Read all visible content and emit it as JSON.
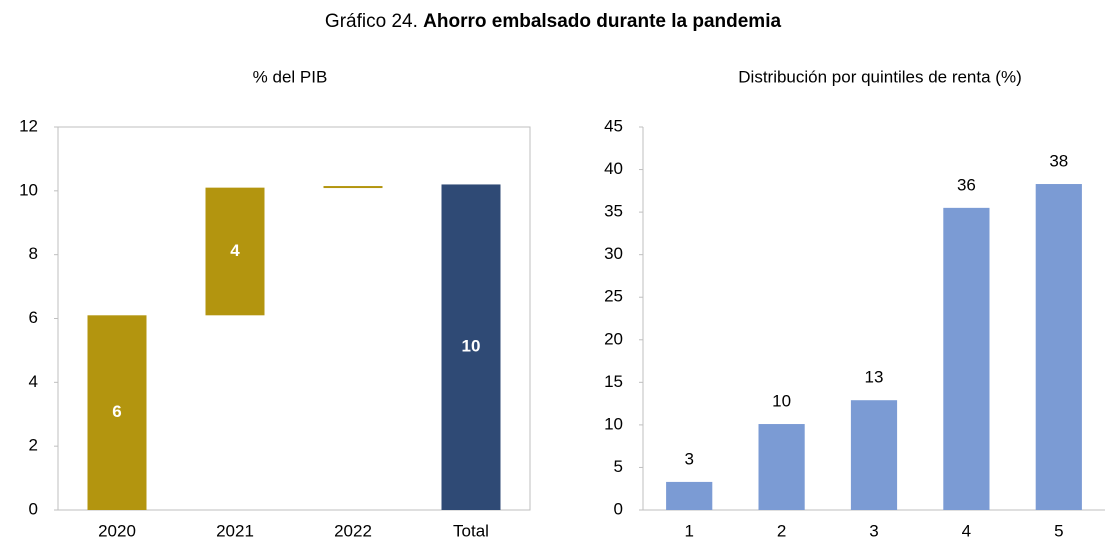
{
  "title": {
    "prefix": "Gráfico 24.",
    "main": "Ahorro embalsado durante la pandemia"
  },
  "chart_data": [
    {
      "type": "waterfall",
      "subtitle": "% del PIB",
      "categories": [
        "2020",
        "2021",
        "2022",
        "Total"
      ],
      "values": [
        6.1,
        4.0,
        0.05,
        10.2
      ],
      "value_labels": [
        "6",
        "4",
        null,
        "10"
      ],
      "measure": [
        "relative",
        "relative",
        "relative",
        "total"
      ],
      "colors": [
        "#b3950f",
        "#b3950f",
        "#b3950f",
        "#2f4a75"
      ],
      "label_position": "inside",
      "label_color": "#ffffff",
      "label_bold": true,
      "ylim": [
        0,
        12
      ],
      "yticks": [
        0,
        2,
        4,
        6,
        8,
        10,
        12
      ],
      "frame": true
    },
    {
      "type": "bar",
      "subtitle": "Distribución por quintiles de renta (%)",
      "categories": [
        "1",
        "2",
        "3",
        "4",
        "5"
      ],
      "values": [
        3.3,
        10.1,
        12.9,
        35.5,
        38.3
      ],
      "value_labels": [
        "3",
        "10",
        "13",
        "36",
        "38"
      ],
      "color": "#7b9bd4",
      "label_position": "above",
      "label_color": "#000000",
      "label_bold": false,
      "ylim": [
        0,
        45
      ],
      "yticks": [
        0,
        5,
        10,
        15,
        20,
        25,
        30,
        35,
        40,
        45
      ],
      "frame": false
    }
  ]
}
